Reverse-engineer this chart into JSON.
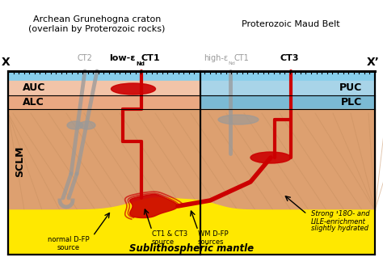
{
  "title_left": "Archean Grunehogna craton\n(overlain by Proterozoic rocks)",
  "title_right": "Proterozoic Maud Belt",
  "label_x": "X",
  "label_xprime": "X’",
  "label_AUC": "AUC",
  "label_ALC": "ALC",
  "label_SCLM": "SCLM",
  "label_PUC": "PUC",
  "label_PLC": "PLC",
  "label_CT2": "CT2",
  "label_CT3": "CT3",
  "label_sublith": "Sublithospheric mantle",
  "label_normal_dfp": "normal D-FP\nsource",
  "label_ct1ct3": "CT1 & CT3\nsource",
  "label_wm_dfp": "WM D-FP\nsources",
  "label_strong": "Strong ¹18O- and\nLILE-enrichment",
  "label_slightly": "slightly hydrated",
  "bg_color": "#ffffff",
  "sky_color": "#87CEEB",
  "auc_color": "#F2C4A8",
  "alc_color": "#EAA882",
  "sclm_color": "#DDA070",
  "puc_color": "#A8D4E8",
  "plc_color": "#7BBAD4",
  "sublith_color": "#FFE800",
  "red_color": "#CC0000",
  "gray_color": "#999999",
  "dark_gray": "#555555",
  "fig_width": 4.74,
  "fig_height": 3.39,
  "dpi": 100
}
